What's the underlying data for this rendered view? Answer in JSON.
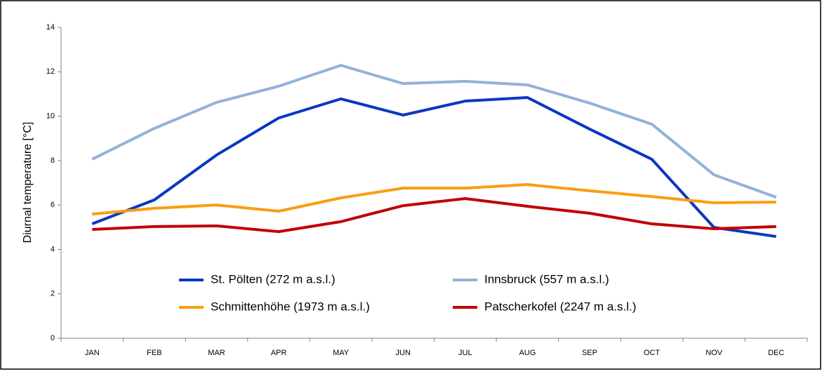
{
  "chart_data": {
    "type": "line",
    "y_label": "Diurnal temperature [°C]",
    "categories": [
      "JAN",
      "FEB",
      "MAR",
      "APR",
      "MAY",
      "JUN",
      "JUL",
      "AUG",
      "SEP",
      "OCT",
      "NOV",
      "DEC"
    ],
    "series": [
      {
        "name": "St. Pölten (272 m a.s.l.)",
        "color": "#0a37c3",
        "values": [
          5.15,
          6.23,
          8.25,
          9.92,
          10.78,
          10.05,
          10.68,
          10.84,
          9.42,
          8.06,
          4.99,
          4.58
        ]
      },
      {
        "name": "Innsbruck (557 m a.s.l.)",
        "color": "#93b2d8",
        "values": [
          8.06,
          9.45,
          10.62,
          11.35,
          12.29,
          11.47,
          11.57,
          11.41,
          10.59,
          9.64,
          7.36,
          6.35
        ]
      },
      {
        "name": "Schmittenhöhe (1973 m a.s.l.)",
        "color": "#f99e0e",
        "values": [
          5.59,
          5.85,
          6.0,
          5.72,
          6.32,
          6.76,
          6.76,
          6.92,
          6.64,
          6.38,
          6.1,
          6.13
        ]
      },
      {
        "name": "Patscherkofel (2247 m a.s.l.)",
        "color": "#c00000",
        "values": [
          4.9,
          5.03,
          5.06,
          4.8,
          5.25,
          5.97,
          6.29,
          5.94,
          5.63,
          5.15,
          4.93,
          5.03
        ]
      }
    ],
    "ylim": [
      0,
      14
    ],
    "yticks": [
      0,
      2,
      4,
      6,
      8,
      10,
      12,
      14
    ],
    "grid": false,
    "legend": "inside-bottom"
  }
}
